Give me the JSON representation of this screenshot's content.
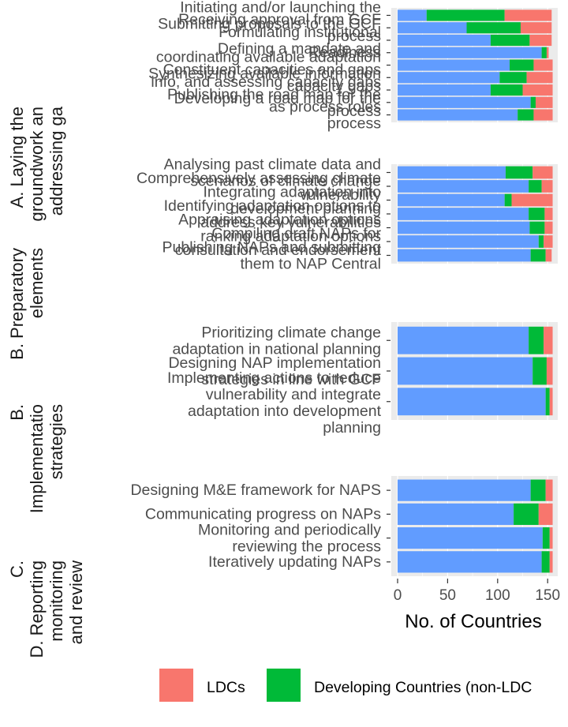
{
  "chart_data": {
    "type": "bar",
    "orientation": "horizontal",
    "stacked": true,
    "xlabel": "No. of Countries",
    "xlim": [
      0,
      155
    ],
    "x_ticks": [
      0,
      50,
      100,
      150
    ],
    "grid": true,
    "legend_position": "bottom",
    "colors": {
      "Other": "#619CFF",
      "Developing Countries  (non-LDC": "#00BA38",
      "LDCs": "#F8766D"
    },
    "legend": [
      {
        "name": "LDCs",
        "color": "#F8766D"
      },
      {
        "name": "Developing Countries  (non-LDC",
        "color": "#00BA38"
      }
    ],
    "facets": [
      {
        "label_lines": [
          "A. Laying the",
          "groundwork an",
          "addressing ga"
        ],
        "categories": [
          {
            "lines": [
              "Initiating and/or launching the",
              "Submitting proposals to the GCF"
            ],
            "values": [
              29,
              78,
              47
            ]
          },
          {
            "lines": [
              "Receiving approval from GCF",
              "process"
            ],
            "values": [
              69,
              54,
              31
            ]
          },
          {
            "lines": [
              "Formulating institutional",
              "Defining a mandate and"
            ],
            "values": [
              93,
              39,
              22
            ]
          },
          {
            "lines": [
              "Readiness"
            ],
            "values": [
              144,
              5,
              2
            ]
          },
          {
            "lines": [
              "coordinating available adaptation",
              "Synthesizing available information"
            ],
            "values": [
              112,
              24,
              19
            ]
          },
          {
            "lines": [
              "Constituent capacities and gaps",
              "capacity gaps"
            ],
            "values": [
              102,
              27,
              26
            ]
          },
          {
            "lines": [
              "info, and assessing capacity gaps",
              "Developing a road map for the"
            ],
            "values": [
              93,
              32,
              30
            ]
          },
          {
            "lines": [
              "Publishing the road map for the",
              "process"
            ],
            "values": [
              133,
              5,
              17
            ]
          },
          {
            "lines": [
              "as process roles",
              "process"
            ],
            "values": [
              120,
              16,
              19
            ]
          }
        ]
      },
      {
        "label_lines": [
          "B. Preparatory",
          "elements"
        ],
        "categories": [
          {
            "lines": [
              "Analysing past climate data and",
              "scenarios of climate change"
            ],
            "values": [
              108,
              27,
              20
            ]
          },
          {
            "lines": [
              "Comprehensively assessing climate",
              "vulnerability"
            ],
            "values": [
              131,
              13,
              11
            ]
          },
          {
            "lines": [
              "Integrating adaptation into",
              "development planning"
            ],
            "values": [
              107,
              7,
              41
            ]
          },
          {
            "lines": [
              "Identifying adaptation options to",
              "address key vulnerabilities"
            ],
            "values": [
              131,
              16,
              8
            ]
          },
          {
            "lines": [
              "Appraising adaptation options",
              "ranking adaptation options"
            ],
            "values": [
              132,
              15,
              8
            ]
          },
          {
            "lines": [
              "Compiling draft NAPs for",
              "consultation and endorsement"
            ],
            "values": [
              141,
              5,
              9
            ]
          },
          {
            "lines": [
              "Publishing NAPs and submitting",
              "them to NAP Central"
            ],
            "values": [
              133,
              15,
              6
            ]
          }
        ]
      },
      {
        "label_lines": [
          "B.",
          "Implementatio",
          "strategies"
        ],
        "categories": [
          {
            "lines": [
              "Prioritizing climate change",
              "adaptation in national planning"
            ],
            "values": [
              131,
              15,
              9
            ]
          },
          {
            "lines": [
              "Designing NAP implementation",
              "strategies in line with GCF"
            ],
            "values": [
              135,
              14,
              6
            ]
          },
          {
            "lines": [
              "Implementing actions to reduce",
              "vulnerability and integrate",
              "adaptation into development",
              "planning"
            ],
            "values": [
              148,
              4,
              3
            ]
          }
        ]
      },
      {
        "label_lines": [
          "C.",
          "D. Reporting",
          "monitoring",
          "and review"
        ],
        "categories": [
          {
            "lines": [
              "Designing M&E framework for NAPS"
            ],
            "values": [
              133,
              15,
              7
            ]
          },
          {
            "lines": [
              "Communicating progress on NAPs"
            ],
            "values": [
              116,
              25,
              14
            ]
          },
          {
            "lines": [
              "Monitoring and periodically",
              "reviewing the process"
            ],
            "values": [
              145,
              7,
              3
            ]
          },
          {
            "lines": [
              "Iteratively updating NAPs"
            ],
            "values": [
              144,
              8,
              3
            ]
          }
        ]
      }
    ]
  }
}
